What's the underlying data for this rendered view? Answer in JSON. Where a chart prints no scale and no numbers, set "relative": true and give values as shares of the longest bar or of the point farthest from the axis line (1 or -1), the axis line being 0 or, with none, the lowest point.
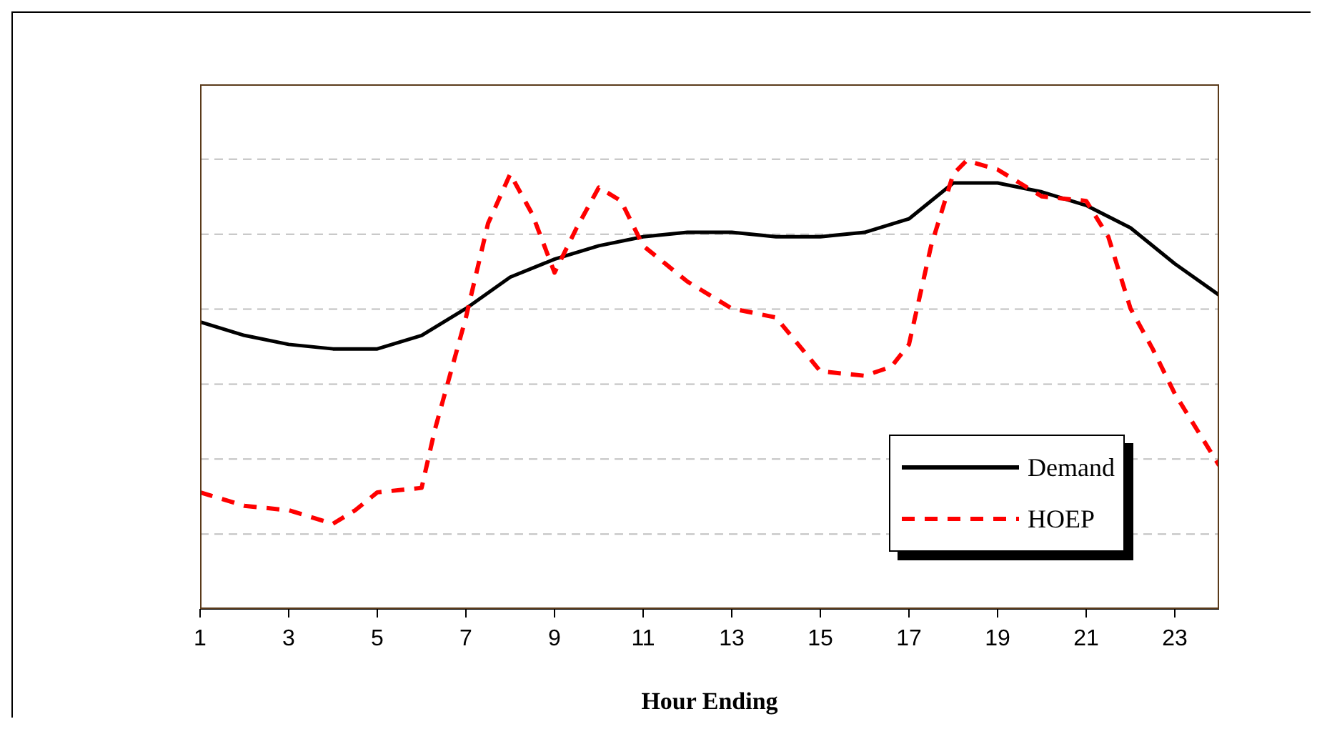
{
  "chart_data": {
    "type": "line",
    "relative": true,
    "xlabel": "Hour Ending",
    "xlim": [
      1,
      24
    ],
    "xticks": [
      1,
      3,
      5,
      7,
      9,
      11,
      13,
      15,
      17,
      19,
      21,
      23
    ],
    "grid": "y",
    "legend": "bottom right",
    "series": [
      {
        "name": "Demand",
        "color": "#000000",
        "line_style": "solid",
        "x": [
          1,
          2,
          3,
          4,
          5,
          6,
          7,
          8,
          9,
          10,
          11,
          12,
          13,
          14,
          15,
          16,
          17,
          18,
          19,
          20,
          21,
          22,
          23,
          24
        ],
        "values": [
          0.64,
          0.61,
          0.59,
          0.58,
          0.58,
          0.61,
          0.67,
          0.74,
          0.78,
          0.81,
          0.83,
          0.84,
          0.84,
          0.83,
          0.83,
          0.84,
          0.87,
          0.95,
          0.95,
          0.93,
          0.9,
          0.85,
          0.77,
          0.7
        ]
      },
      {
        "name": "HOEP",
        "color": "#ff0000",
        "line_style": "dashed",
        "x": [
          1,
          2,
          3,
          4,
          4.5,
          5,
          6,
          6.3,
          7,
          7.5,
          8,
          8.5,
          9,
          9.5,
          10,
          10.5,
          11,
          11.5,
          12,
          13,
          14,
          14.5,
          15,
          16,
          16.6,
          17,
          17.5,
          18,
          18.3,
          19,
          19.5,
          20,
          21,
          21.5,
          22,
          22.5,
          23,
          24
        ],
        "values": [
          0.26,
          0.23,
          0.22,
          0.19,
          0.22,
          0.26,
          0.27,
          0.4,
          0.65,
          0.86,
          0.97,
          0.88,
          0.75,
          0.85,
          0.94,
          0.91,
          0.81,
          0.77,
          0.73,
          0.67,
          0.65,
          0.59,
          0.53,
          0.52,
          0.54,
          0.59,
          0.81,
          0.97,
          1,
          0.98,
          0.95,
          0.92,
          0.91,
          0.83,
          0.67,
          0.58,
          0.48,
          0.32
        ]
      }
    ]
  }
}
